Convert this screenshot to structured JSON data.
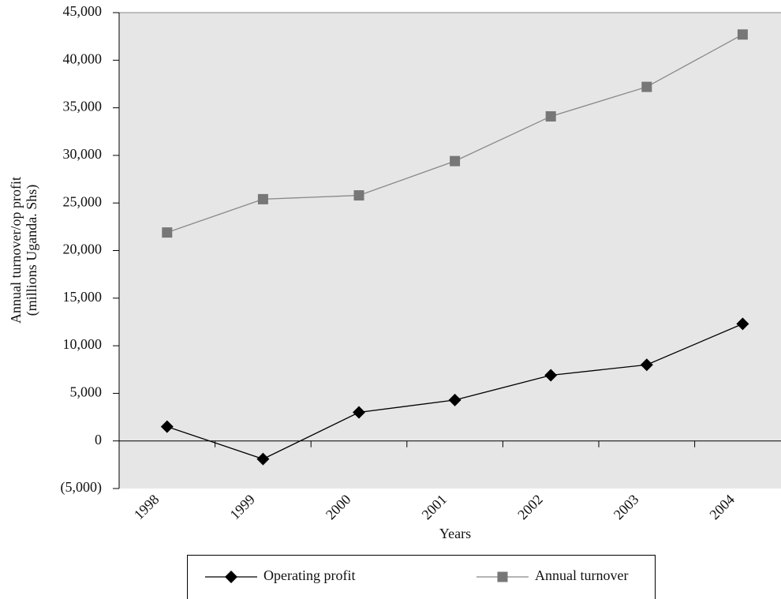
{
  "chart_data": {
    "type": "line",
    "ylabel": [
      "Annual turnover/op profit",
      "(millions Uganda. Shs)"
    ],
    "xlabel": "Years",
    "categories": [
      "1998",
      "1999",
      "2000",
      "2001",
      "2002",
      "2003",
      "2004"
    ],
    "series": [
      {
        "name": "Operating profit",
        "color": "#000000",
        "marker": "diamond",
        "values": [
          1500,
          -1900,
          3000,
          4300,
          6900,
          8000,
          12300
        ]
      },
      {
        "name": "Annual turnover",
        "color": "#777777",
        "marker": "square",
        "values": [
          21900,
          25400,
          25800,
          29400,
          34100,
          37200,
          42700
        ]
      }
    ],
    "ylim": [
      -5000,
      45000
    ],
    "yticks": [
      {
        "value": -5000,
        "label": "(5,000)"
      },
      0,
      {
        "value": 5000,
        "label": "5,000"
      },
      {
        "value": 10000,
        "label": "10,000"
      },
      {
        "value": 15000,
        "label": "15,000"
      },
      {
        "value": 20000,
        "label": "20,000"
      },
      {
        "value": 25000,
        "label": "25,000"
      },
      {
        "value": 30000,
        "label": "30,000"
      },
      {
        "value": 35000,
        "label": "35,000"
      },
      {
        "value": 40000,
        "label": "40,000"
      },
      {
        "value": 45000,
        "label": "45,000"
      }
    ],
    "legend": "bottom"
  }
}
